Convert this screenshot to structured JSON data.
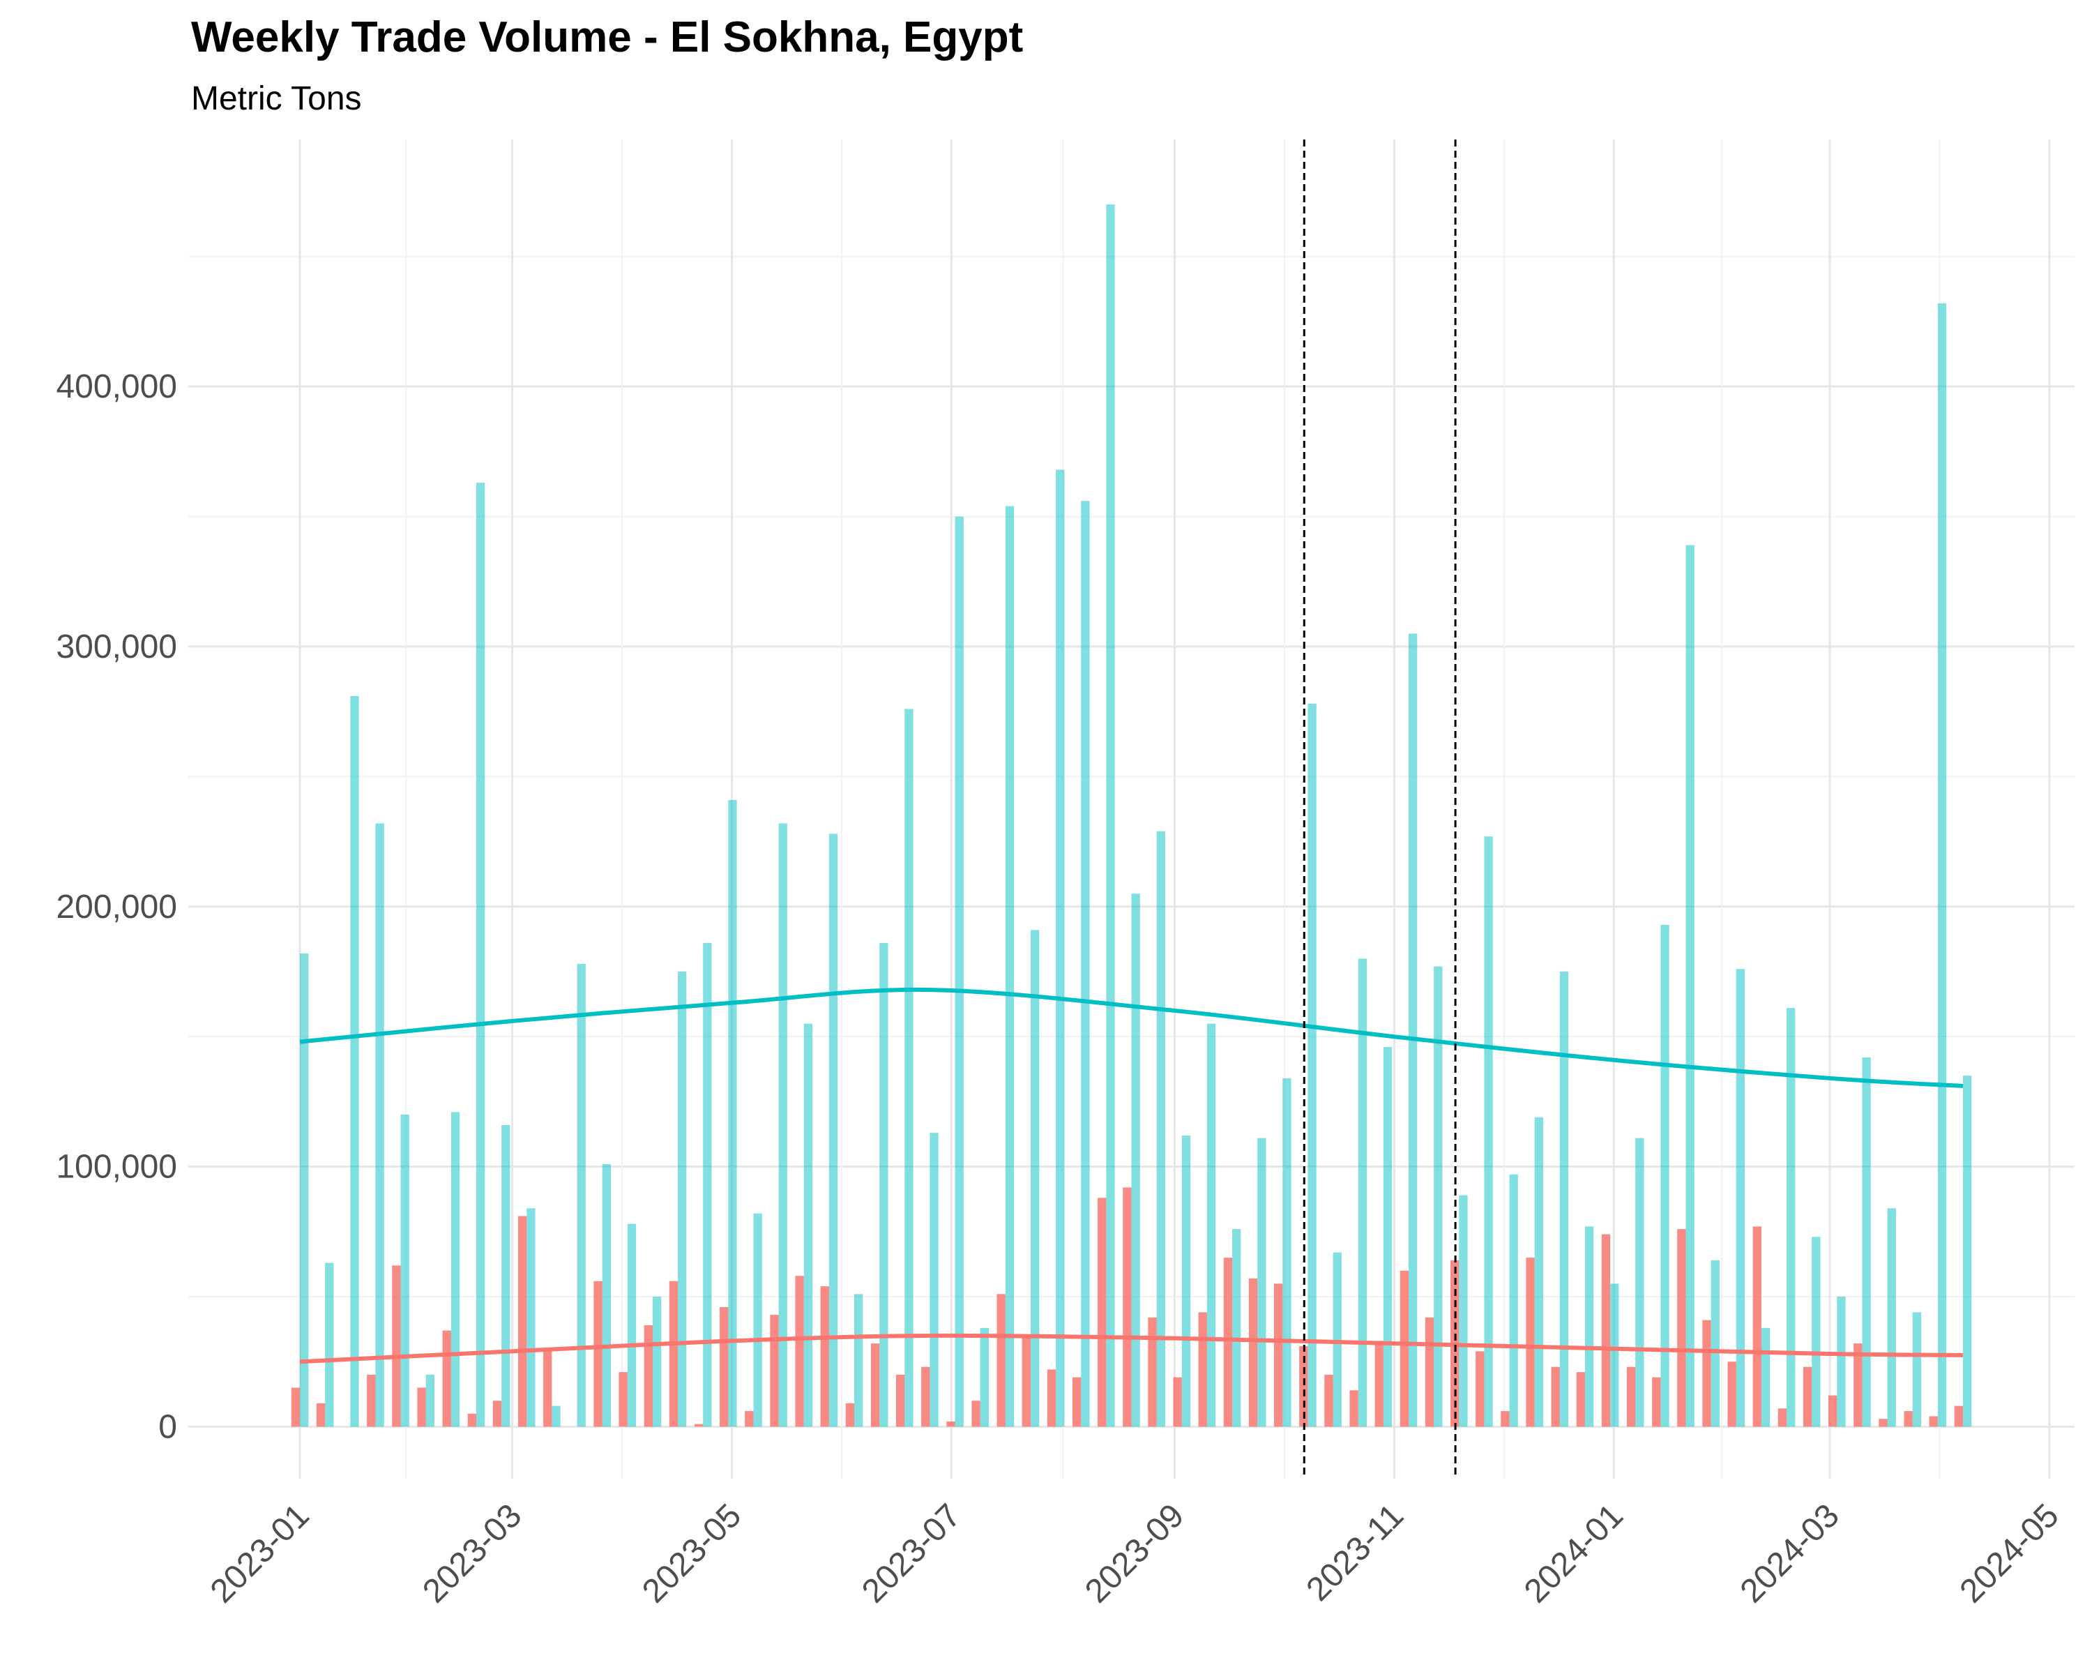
{
  "chart_data": {
    "type": "bar",
    "title": "Weekly Trade Volume - El Sokhna, Egypt",
    "subtitle": "Metric Tons",
    "xlabel": "",
    "ylabel": "",
    "ylim": [
      -20000,
      495000
    ],
    "y_ticks": [
      0,
      100000,
      200000,
      300000,
      400000
    ],
    "y_tick_labels": [
      "0",
      "100,000",
      "200,000",
      "300,000",
      "400,000"
    ],
    "x_ticks": [
      "2023-01-01",
      "2023-03-01",
      "2023-05-01",
      "2023-07-01",
      "2023-09-01",
      "2023-11-01",
      "2024-01-01",
      "2024-03-01",
      "2024-05-01"
    ],
    "x_tick_labels": [
      "2023-01",
      "2023-03",
      "2023-05",
      "2023-07",
      "2023-09",
      "2023-11",
      "2024-01",
      "2024-03",
      "2024-05"
    ],
    "xlim": [
      "2022-12-01",
      "2024-05-08"
    ],
    "grid": true,
    "legend": "none",
    "vlines": [
      "2023-10-07",
      "2023-11-18"
    ],
    "colors": {
      "series_a": "#F8766D",
      "series_b": "#00BFC4",
      "grid": "#e6e6e6",
      "vline": "#000000"
    },
    "x": [
      "2023-01-01",
      "2023-01-08",
      "2023-01-15",
      "2023-01-22",
      "2023-01-29",
      "2023-02-05",
      "2023-02-12",
      "2023-02-19",
      "2023-02-26",
      "2023-03-05",
      "2023-03-12",
      "2023-03-19",
      "2023-03-26",
      "2023-04-02",
      "2023-04-09",
      "2023-04-16",
      "2023-04-23",
      "2023-04-30",
      "2023-05-07",
      "2023-05-14",
      "2023-05-21",
      "2023-05-28",
      "2023-06-04",
      "2023-06-11",
      "2023-06-18",
      "2023-06-25",
      "2023-07-02",
      "2023-07-09",
      "2023-07-16",
      "2023-07-23",
      "2023-07-30",
      "2023-08-06",
      "2023-08-13",
      "2023-08-20",
      "2023-08-27",
      "2023-09-03",
      "2023-09-10",
      "2023-09-17",
      "2023-09-24",
      "2023-10-01",
      "2023-10-08",
      "2023-10-15",
      "2023-10-22",
      "2023-10-29",
      "2023-11-05",
      "2023-11-12",
      "2023-11-19",
      "2023-11-26",
      "2023-12-03",
      "2023-12-10",
      "2023-12-17",
      "2023-12-24",
      "2023-12-31",
      "2024-01-07",
      "2024-01-14",
      "2024-01-21",
      "2024-01-28",
      "2024-02-04",
      "2024-02-11",
      "2024-02-18",
      "2024-02-25",
      "2024-03-03",
      "2024-03-10",
      "2024-03-17",
      "2024-03-24",
      "2024-03-31",
      "2024-04-07"
    ],
    "series": [
      {
        "values": [
          15000,
          9000,
          0,
          20000,
          62000,
          15000,
          37000,
          5000,
          10000,
          81000,
          30000,
          0,
          56000,
          21000,
          39000,
          56000,
          1000,
          46000,
          6000,
          43000,
          58000,
          54000,
          9000,
          32000,
          20000,
          23000,
          2000,
          10000,
          51000,
          35000,
          22000,
          19000,
          88000,
          92000,
          42000,
          19000,
          44000,
          65000,
          57000,
          55000,
          31000,
          20000,
          14000,
          33000,
          60000,
          42000,
          64000,
          29000,
          6000,
          65000,
          23000,
          21000,
          74000,
          23000,
          19000,
          76000,
          41000,
          25000,
          77000,
          7000,
          23000,
          12000,
          32000,
          3000,
          6000,
          4000,
          8000
        ]
      },
      {
        "values": [
          182000,
          63000,
          281000,
          232000,
          120000,
          20000,
          121000,
          363000,
          116000,
          84000,
          8000,
          178000,
          101000,
          78000,
          50000,
          175000,
          186000,
          241000,
          82000,
          232000,
          155000,
          228000,
          51000,
          186000,
          276000,
          113000,
          350000,
          38000,
          354000,
          191000,
          368000,
          356000,
          470000,
          205000,
          229000,
          112000,
          155000,
          76000,
          111000,
          134000,
          278000,
          67000,
          180000,
          146000,
          305000,
          177000,
          89000,
          227000,
          97000,
          119000,
          175000,
          77000,
          55000,
          111000,
          193000,
          339000,
          64000,
          176000,
          38000,
          161000,
          73000,
          50000,
          142000,
          84000,
          44000,
          432000,
          135000
        ]
      }
    ],
    "trends": [
      {
        "points": [
          [
            "2023-01-01",
            25000
          ],
          [
            "2023-03-01",
            29000
          ],
          [
            "2023-05-01",
            33000
          ],
          [
            "2023-06-25",
            35000
          ],
          [
            "2023-09-01",
            34000
          ],
          [
            "2023-11-01",
            32000
          ],
          [
            "2024-01-01",
            30000
          ],
          [
            "2024-03-01",
            28000
          ],
          [
            "2024-04-07",
            27500
          ]
        ]
      },
      {
        "points": [
          [
            "2023-01-01",
            148000
          ],
          [
            "2023-03-01",
            156000
          ],
          [
            "2023-05-01",
            163000
          ],
          [
            "2023-06-25",
            168000
          ],
          [
            "2023-09-01",
            160000
          ],
          [
            "2023-11-01",
            150000
          ],
          [
            "2024-01-01",
            141000
          ],
          [
            "2024-03-01",
            134000
          ],
          [
            "2024-04-07",
            131000
          ]
        ]
      }
    ]
  }
}
